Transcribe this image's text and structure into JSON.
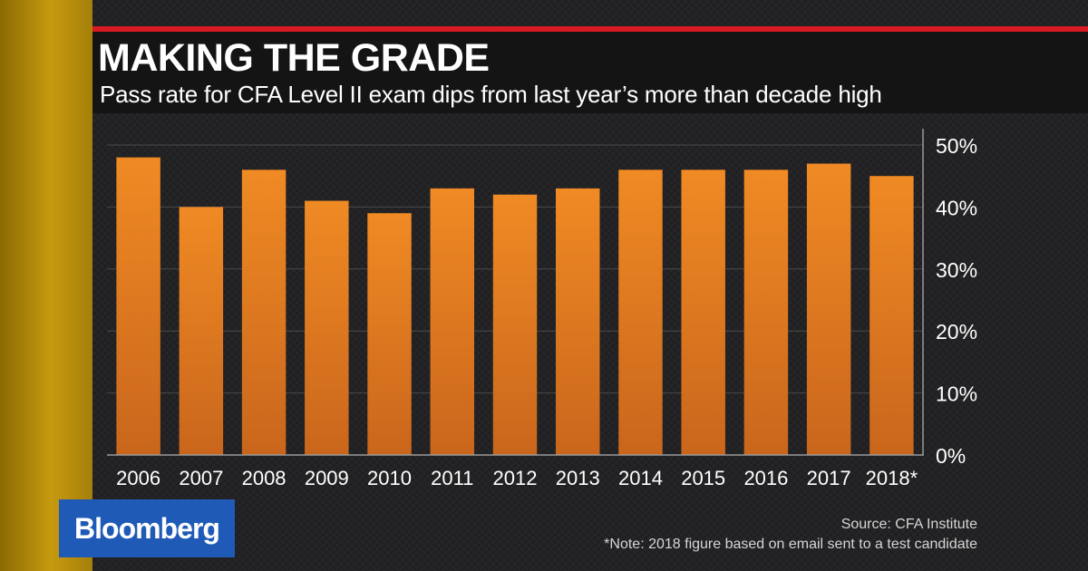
{
  "header": {
    "title": "MAKING THE GRADE",
    "subtitle": "Pass rate for CFA Level II exam dips from last year’s more than decade high"
  },
  "chart_data": {
    "type": "bar",
    "title": "MAKING THE GRADE",
    "subtitle": "Pass rate for CFA Level II exam dips from last year’s more than decade high",
    "xlabel": "",
    "ylabel": "",
    "categories": [
      "2006",
      "2007",
      "2008",
      "2009",
      "2010",
      "2011",
      "2012",
      "2013",
      "2014",
      "2015",
      "2016",
      "2017",
      "2018*"
    ],
    "values": [
      48,
      40,
      46,
      41,
      39,
      43,
      42,
      43,
      46,
      46,
      46,
      47,
      45
    ],
    "value_unit": "%",
    "ylim": [
      0,
      50
    ],
    "yticks": [
      0,
      10,
      20,
      30,
      40,
      50
    ],
    "ytick_labels": [
      "0%",
      "10%",
      "20%",
      "30%",
      "40%",
      "50%"
    ],
    "grid": true,
    "y_axis_side": "right",
    "bar_color": "#f08a24",
    "bar_color_bottom": "#c9661c"
  },
  "footer": {
    "brand": "Bloomberg",
    "brand_color": "#1f5ab7",
    "source": "Source: CFA Institute",
    "note": "*Note: 2018 figure based on email sent to a test candidate"
  }
}
